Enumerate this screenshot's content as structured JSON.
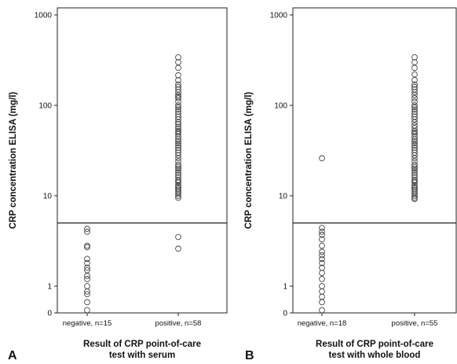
{
  "chart_data": [
    {
      "type": "scatter",
      "panel": "A",
      "xlabel": [
        "Result of CRP point-of-care",
        "test with serum"
      ],
      "ylabel": "CRP concentration ELISA (mg/l)",
      "yscale": "log",
      "yticks": [
        "0",
        "1",
        "10",
        "100",
        "1000"
      ],
      "categories": [
        "negative, n=15",
        "positive, n=58"
      ],
      "cutoff": 5,
      "series": [
        {
          "category": "negative, n=15",
          "values": [
            4.3,
            4.0,
            2.8,
            2.7,
            2.0,
            1.8,
            1.6,
            1.5,
            1.3,
            1.2,
            1.0,
            0.8,
            0.7,
            0.4,
            0.1
          ]
        },
        {
          "category": "positive, n=58",
          "values": [
            340,
            300,
            260,
            215,
            190,
            170,
            160,
            150,
            140,
            130,
            125,
            120,
            110,
            100,
            95,
            90,
            85,
            80,
            75,
            70,
            65,
            62,
            58,
            55,
            52,
            50,
            48,
            45,
            42,
            40,
            38,
            36,
            34,
            32,
            30,
            28,
            26,
            24,
            22,
            21,
            20,
            19,
            18,
            17,
            16,
            15,
            14.5,
            14,
            13,
            12.5,
            12,
            11.5,
            11,
            10.5,
            10,
            9.5,
            3.5,
            2.6
          ]
        }
      ]
    },
    {
      "type": "scatter",
      "panel": "B",
      "xlabel": [
        "Result of CRP point-of-care",
        "test with whole blood"
      ],
      "ylabel": "CRP concentration ELISA (mg/l)",
      "yscale": "log",
      "yticks": [
        "0",
        "1",
        "10",
        "100",
        "1000"
      ],
      "categories": [
        "negative, n=18",
        "positive, n=55"
      ],
      "cutoff": 5,
      "series": [
        {
          "category": "negative, n=18",
          "values": [
            26,
            4.4,
            4.0,
            3.7,
            3.3,
            2.8,
            2.4,
            2.2,
            2.0,
            1.8,
            1.6,
            1.4,
            1.2,
            1.0,
            0.8,
            0.6,
            0.4,
            0.1
          ]
        },
        {
          "category": "positive, n=55",
          "values": [
            340,
            300,
            260,
            220,
            190,
            170,
            160,
            150,
            140,
            130,
            120,
            110,
            100,
            95,
            90,
            85,
            80,
            75,
            70,
            65,
            60,
            56,
            52,
            50,
            48,
            45,
            42,
            40,
            38,
            36,
            34,
            32,
            30,
            28,
            26,
            24,
            22,
            21,
            20,
            19,
            18,
            17,
            16,
            15,
            14.5,
            14,
            13,
            12.5,
            12,
            11.5,
            11,
            10.5,
            10,
            9.5,
            9.2
          ]
        }
      ]
    }
  ]
}
